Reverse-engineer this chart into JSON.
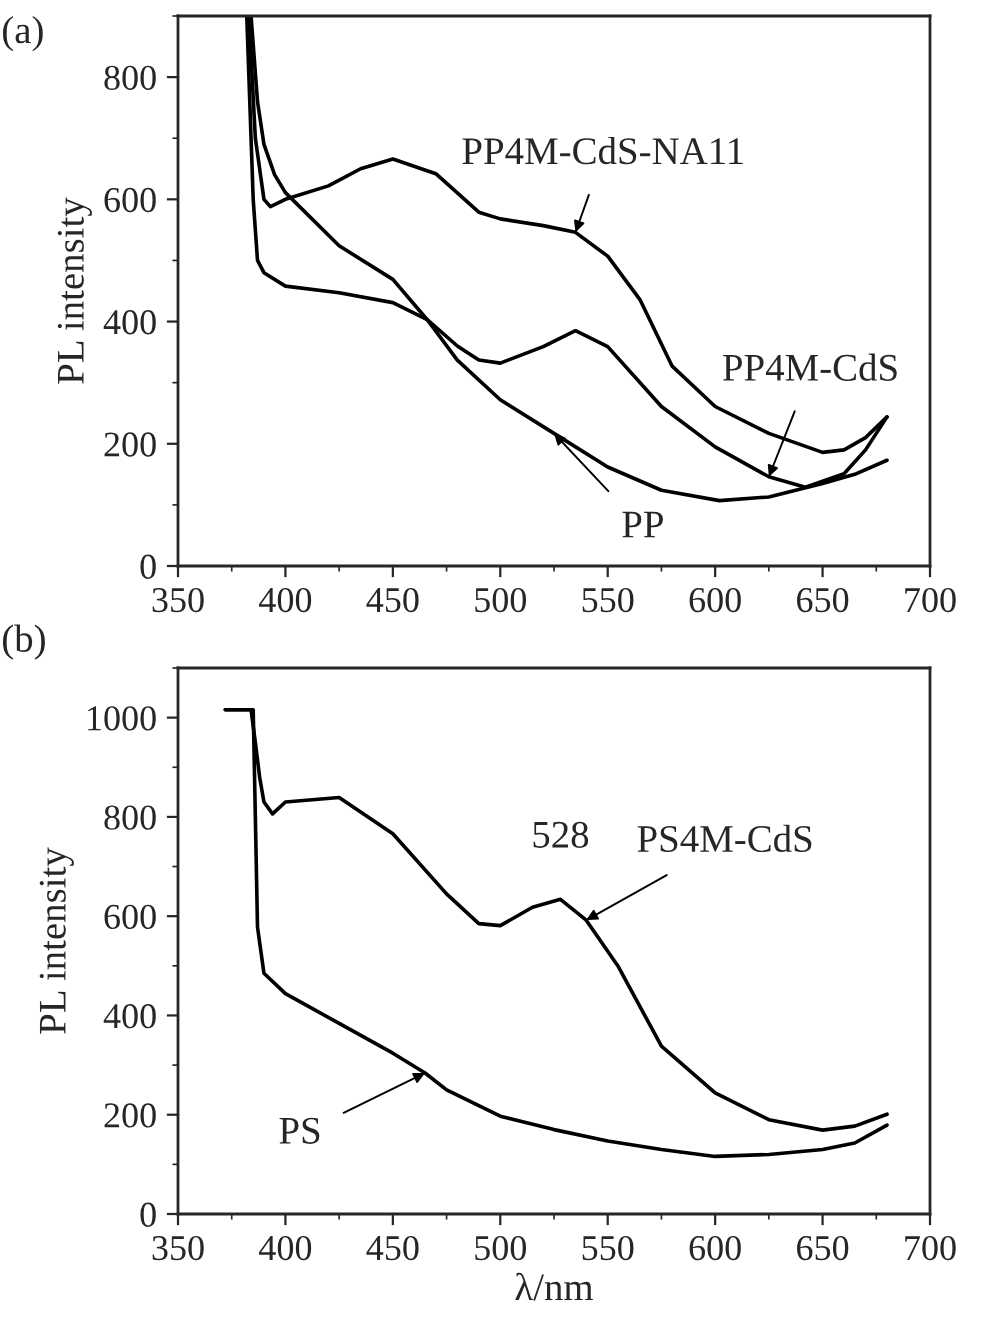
{
  "chart_data": [
    {
      "type": "line",
      "title": "(a)",
      "ylabel": "PL intensity",
      "xlim": [
        350,
        700
      ],
      "ylim": [
        0,
        900
      ],
      "xticks": [
        350,
        400,
        450,
        500,
        550,
        600,
        650,
        700
      ],
      "yticks": [
        0,
        200,
        400,
        600,
        800
      ],
      "grid": false,
      "legend": false,
      "marker": "none",
      "line_style": "solid",
      "series": [
        {
          "name": "PP4M-CdS-NA11",
          "color": "#000000",
          "x": [
            383,
            386,
            390,
            393,
            400,
            420,
            435,
            450,
            470,
            490,
            500,
            520,
            535,
            550,
            565,
            580,
            600,
            625,
            650,
            660,
            670,
            680
          ],
          "values": [
            900,
            700,
            600,
            588,
            600,
            622,
            650,
            666,
            642,
            579,
            568,
            557,
            546,
            507,
            436,
            327,
            261,
            217,
            186,
            190,
            210,
            244
          ]
        },
        {
          "name": "PP4M-CdS",
          "color": "#000000",
          "x": [
            384,
            387,
            390,
            395,
            400,
            425,
            450,
            466,
            480,
            490,
            500,
            520,
            535,
            550,
            575,
            600,
            625,
            642,
            660,
            670,
            680
          ],
          "values": [
            900,
            760,
            690,
            640,
            611,
            524,
            469,
            403,
            360,
            337,
            332,
            359,
            385,
            359,
            261,
            195,
            146,
            129,
            151,
            190,
            244
          ]
        },
        {
          "name": "PP",
          "color": "#000000",
          "x": [
            382,
            384,
            385,
            387,
            390,
            400,
            425,
            450,
            466,
            480,
            500,
            525,
            550,
            575,
            602,
            625,
            650,
            665,
            680
          ],
          "values": [
            900,
            700,
            600,
            500,
            480,
            458,
            447,
            431,
            403,
            337,
            272,
            217,
            162,
            124,
            107,
            113,
            135,
            150,
            173
          ]
        }
      ]
    },
    {
      "type": "line",
      "title": "(b)",
      "xlabel": "λ/nm",
      "ylabel": "PL intensity",
      "xlim": [
        350,
        700
      ],
      "ylim": [
        0,
        1100
      ],
      "xticks": [
        350,
        400,
        450,
        500,
        550,
        600,
        650,
        700
      ],
      "yticks": [
        0,
        200,
        400,
        600,
        800,
        1000
      ],
      "grid": false,
      "legend": false,
      "marker": "none",
      "line_style": "solid",
      "annotations": [
        {
          "text": "528",
          "x": 528,
          "y": 634
        }
      ],
      "series": [
        {
          "name": "PS4M-CdS",
          "color": "#000000",
          "x": [
            372,
            384,
            386,
            388,
            390,
            394,
            400,
            425,
            450,
            475,
            490,
            500,
            515,
            528,
            540,
            555,
            575,
            600,
            625,
            650,
            665,
            680
          ],
          "values": [
            1016,
            1016,
            950,
            880,
            830,
            806,
            830,
            839,
            766,
            645,
            585,
            581,
            618,
            634,
            592,
            498,
            338,
            244,
            190,
            169,
            177,
            201
          ]
        },
        {
          "name": "PS",
          "color": "#000000",
          "x": [
            372,
            385,
            386,
            387,
            390,
            400,
            425,
            450,
            465,
            475,
            500,
            525,
            550,
            575,
            600,
            625,
            650,
            665,
            680
          ],
          "values": [
            1016,
            1016,
            800,
            578,
            485,
            444,
            384,
            324,
            284,
            250,
            197,
            170,
            147,
            130,
            116,
            120,
            130,
            143,
            179
          ]
        }
      ]
    }
  ]
}
